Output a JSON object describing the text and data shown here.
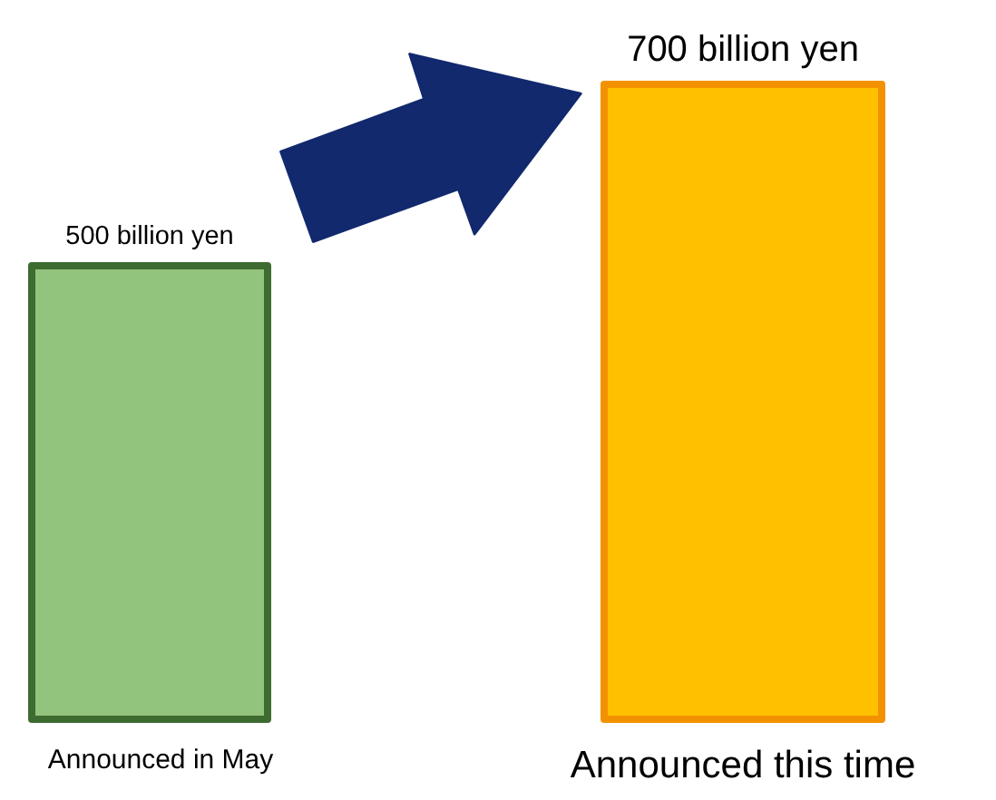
{
  "chart_data": {
    "type": "bar",
    "categories": [
      "Announced in May",
      "Announced this time"
    ],
    "values": [
      500,
      700
    ],
    "value_labels": [
      "500 billion yen",
      "700 billion yen"
    ],
    "colors": [
      "#93c47d",
      "#ffc000"
    ],
    "ylim": [
      0,
      700
    ]
  }
}
